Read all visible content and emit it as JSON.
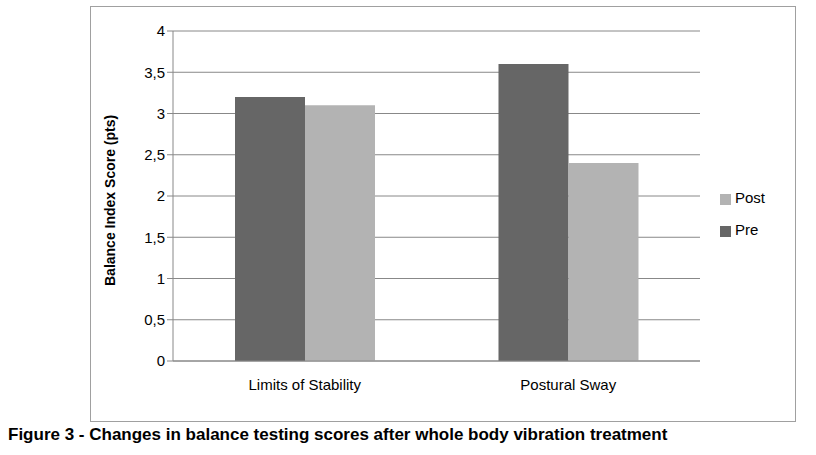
{
  "chart_data": {
    "type": "bar",
    "title": "Figure 3 - Changes in balance testing scores after whole body vibration treatment",
    "y_label": "Balance Index Score (pts)",
    "categories": [
      "Limits of Stability",
      "Postural Sway"
    ],
    "series": [
      {
        "name": "Pre",
        "color": "#666666",
        "values": [
          3.2,
          3.6
        ]
      },
      {
        "name": "Post",
        "color": "#b3b3b3",
        "values": [
          3.1,
          2.4
        ]
      }
    ],
    "ylim": [
      0,
      4
    ],
    "yticks": [
      0,
      {
        "value": 0.5,
        "label": "0,5"
      },
      1,
      {
        "value": 1.5,
        "label": "1,5"
      },
      2,
      {
        "value": 2.5,
        "label": "2,5"
      },
      3,
      {
        "value": 3.5,
        "label": "3,5"
      },
      4
    ],
    "grid": true,
    "legend": "right"
  }
}
